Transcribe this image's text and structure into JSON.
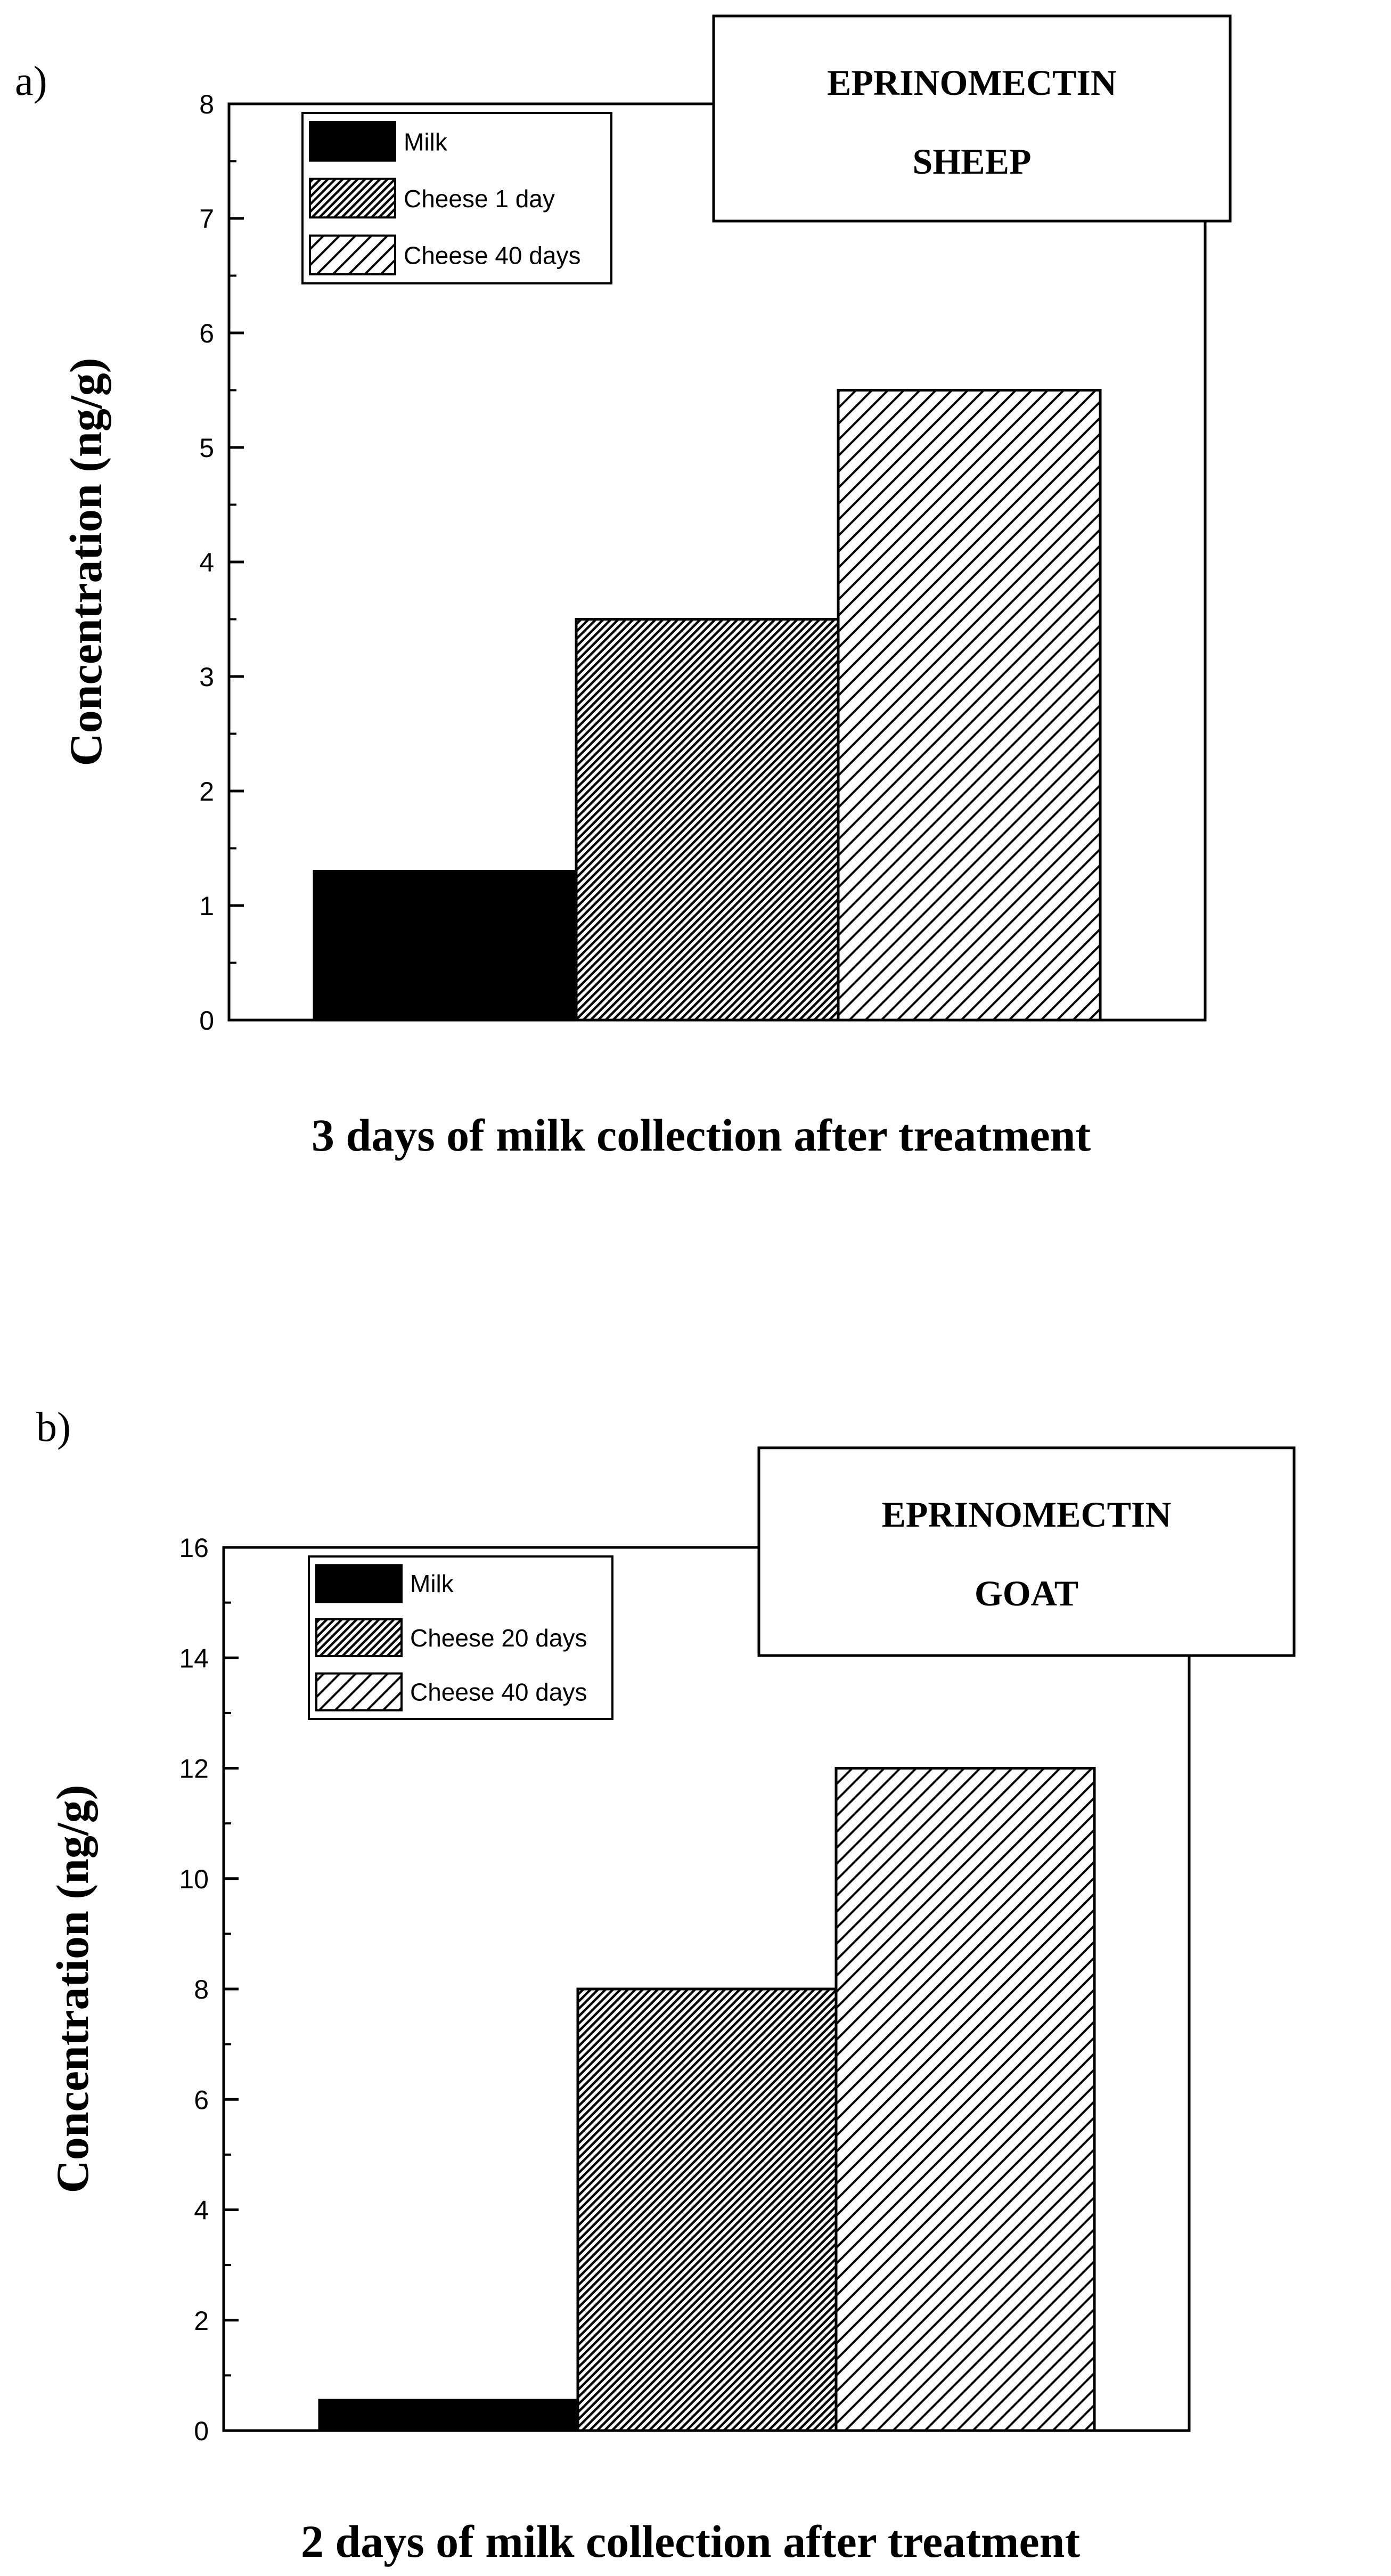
{
  "chart_data": [
    {
      "panel_label": "a)",
      "type": "bar",
      "annotation": [
        "EPRINOMECTIN",
        "SHEEP"
      ],
      "ylabel": "Concentration (ng/g)",
      "xlabel": "3 days of milk collection after treatment",
      "ylim": [
        0,
        8
      ],
      "y_ticks": [
        0,
        1,
        2,
        3,
        4,
        5,
        6,
        7,
        8
      ],
      "y_minor_step": 0.5,
      "legend_position": "top-left",
      "series": [
        {
          "name": "Milk",
          "value": 1.3,
          "pattern": "solid"
        },
        {
          "name": "Cheese 1 day",
          "value": 3.5,
          "pattern": "dense-hatch"
        },
        {
          "name": "Cheese 40 days",
          "value": 5.5,
          "pattern": "sparse-hatch"
        }
      ]
    },
    {
      "panel_label": "b)",
      "type": "bar",
      "annotation": [
        "EPRINOMECTIN",
        "GOAT"
      ],
      "ylabel": "Concentration (ng/g)",
      "xlabel": "2 days of milk collection after treatment",
      "ylim": [
        0,
        16
      ],
      "y_ticks": [
        0,
        2,
        4,
        6,
        8,
        10,
        12,
        14,
        16
      ],
      "y_minor_step": 1,
      "legend_position": "top-left",
      "series": [
        {
          "name": "Milk",
          "value": 0.55,
          "pattern": "solid"
        },
        {
          "name": "Cheese 20 days",
          "value": 8,
          "pattern": "dense-hatch"
        },
        {
          "name": "Cheese 40 days",
          "value": 12,
          "pattern": "sparse-hatch"
        }
      ]
    }
  ]
}
